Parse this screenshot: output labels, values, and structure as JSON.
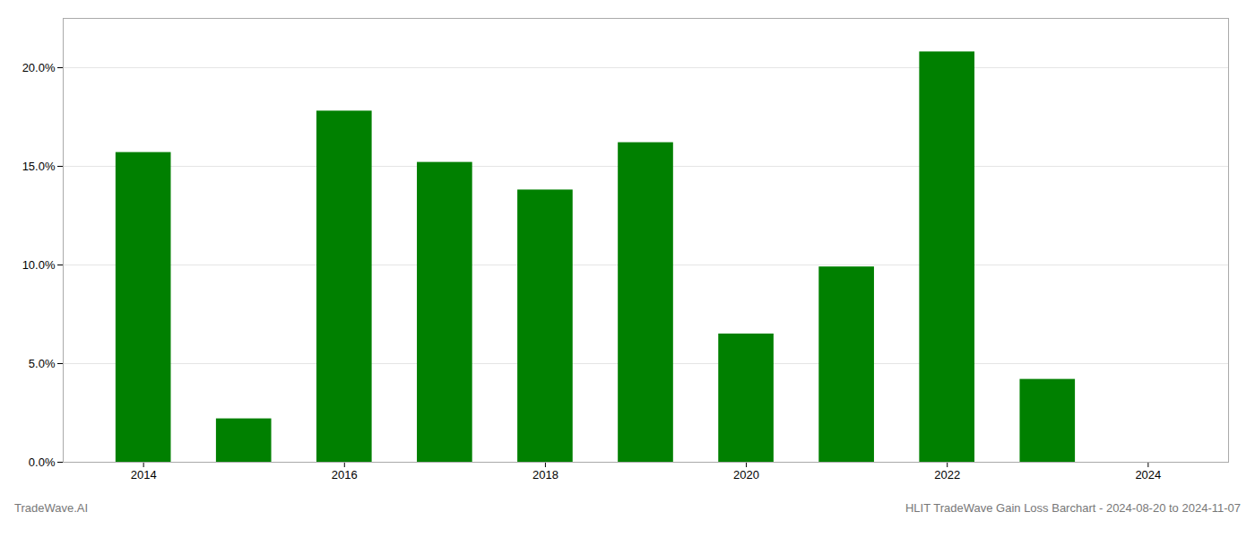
{
  "chart_data": {
    "type": "bar",
    "title": "HLIT TradeWave Gain Loss Barchart - 2024-08-20 to 2024-11-07",
    "annotations": [
      "TradeWave.AI"
    ],
    "x": [
      2014,
      2015,
      2016,
      2017,
      2018,
      2019,
      2020,
      2021,
      2022,
      2023
    ],
    "values": [
      0.157,
      0.022,
      0.178,
      0.152,
      0.138,
      0.162,
      0.065,
      0.099,
      0.208,
      0.042
    ],
    "color": "#008000",
    "xlim": [
      2013.2,
      2024.8
    ],
    "xticks": [
      2014,
      2016,
      2018,
      2020,
      2022,
      2024
    ],
    "ylim": [
      0,
      0.225
    ],
    "yticks": [
      {
        "value": 0.0,
        "label": "0.0%"
      },
      {
        "value": 0.05,
        "label": "5.0%"
      },
      {
        "value": 0.1,
        "label": "10.0%"
      },
      {
        "value": 0.15,
        "label": "15.0%"
      },
      {
        "value": 0.2,
        "label": "20.0%"
      }
    ],
    "grid": true
  }
}
